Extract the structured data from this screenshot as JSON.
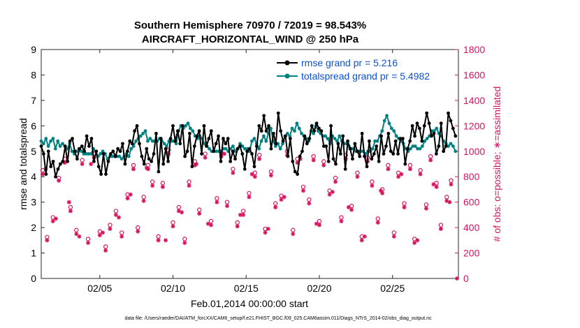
{
  "chart_data": {
    "type": "line",
    "title": "Southern Hemisphere 70970 / 72019 = 98.543%",
    "subtitle": "AIRCRAFT_HORIZONTAL_WIND @ 250 hPa",
    "xlabel": "Feb.01,2014 00:00:00 start",
    "ylabel_left": "rmse and totalspread",
    "ylabel_right": "# of obs: o=possible; ∗=assimilated",
    "footer": "data file: /Users/raeder/DAI/ATM_forcXX/CAM6_setup/f.e21.FHIST_BGC.f09_025.CAM6assim.011/Diags_NTrS_2014-02/obs_diag_output.nc",
    "xlim": [
      1,
      29.5
    ],
    "ylim_left": [
      0,
      9
    ],
    "ylim_right": [
      0,
      1800
    ],
    "x_ticks": [
      5,
      10,
      15,
      20,
      25
    ],
    "x_tick_labels": [
      "02/05",
      "02/10",
      "02/15",
      "02/20",
      "02/25"
    ],
    "y_left_ticks": [
      0,
      1,
      2,
      3,
      4,
      5,
      6,
      7,
      8,
      9
    ],
    "y_right_ticks": [
      0,
      200,
      400,
      600,
      800,
      1000,
      1200,
      1400,
      1600,
      1800
    ],
    "colors": {
      "rmse": "#000000",
      "spread": "#008080",
      "obs": "#d6135e",
      "legend_text": "#0a4fd6"
    },
    "legend": [
      "rmse grand pr = 5.216",
      "totalspread grand pr = 5.4982"
    ],
    "series": [
      {
        "name": "rmse",
        "values": [
          5.2,
          4.9,
          4.1,
          5.0,
          4.4,
          4.6,
          4.0,
          4.3,
          4.5,
          4.6,
          5.2,
          4.6,
          5.4,
          5.5,
          5.0,
          4.7,
          5.1,
          5.2,
          5.0,
          5.6,
          5.2,
          5.5,
          4.6,
          5.0,
          4.4,
          4.1,
          4.9,
          4.1,
          4.6,
          4.9,
          5.0,
          4.8,
          5.1,
          5.0,
          5.3,
          4.5,
          5.0,
          5.4,
          5.3,
          5.8,
          6.0,
          5.3,
          4.8,
          4.5,
          5.1,
          4.7,
          4.6,
          4.9,
          5.7,
          4.2,
          5.5,
          4.5,
          5.1,
          4.6,
          5.5,
          6.0,
          5.4,
          5.8,
          5.3,
          6.0,
          4.8,
          5.0,
          5.7,
          4.4,
          5.2,
          5.6,
          5.8,
          4.9,
          6.0,
          5.2,
          5.5,
          5.8,
          5.0,
          5.3,
          5.6,
          4.6,
          5.5,
          5.3,
          5.5,
          4.6,
          5.0,
          4.7,
          5.1,
          5.2,
          4.9,
          4.3,
          5.0,
          5.1,
          4.9,
          4.4,
          5.2,
          6.0,
          5.8,
          6.4,
          5.8,
          6.0,
          5.1,
          5.7,
          5.3,
          6.5,
          5.8,
          5.4,
          5.6,
          4.8,
          5.5,
          4.6,
          4.2,
          4.1,
          4.8,
          5.0,
          5.6,
          5.3,
          5.5,
          6.0,
          5.8,
          6.1,
          5.9,
          5.8,
          5.2,
          5.2,
          4.6,
          6.0,
          4.7,
          4.5,
          5.3,
          4.9,
          5.6,
          4.3,
          5.4,
          5.1,
          4.7,
          5.3,
          5.0,
          4.8,
          5.7,
          4.8,
          4.4,
          5.4,
          4.7,
          4.9,
          5.2,
          4.6,
          5.6,
          4.9,
          5.2,
          5.7,
          5.0,
          4.9,
          5.4,
          4.9,
          5.5,
          5.5,
          4.5,
          5.1,
          5.4,
          6.0,
          5.6,
          6.1,
          5.9,
          5.4,
          6.0,
          6.5,
          6.1,
          5.6,
          5.7,
          4.9,
          5.2,
          6.1,
          5.0,
          5.2,
          6.5,
          6.2,
          5.9,
          5.6
        ]
      },
      {
        "name": "totalspread",
        "values": [
          5.4,
          5.3,
          5.5,
          5.2,
          5.4,
          5.5,
          5.1,
          5.4,
          5.2,
          5.3,
          5.2,
          5.1,
          5.3,
          5.0,
          4.9,
          5.0,
          5.1,
          5.0,
          4.9,
          4.9,
          4.9,
          4.9,
          5.1,
          5.0,
          4.8,
          4.9,
          5.0,
          4.9,
          4.7,
          4.8,
          4.8,
          4.8,
          4.8,
          4.8,
          4.7,
          4.8,
          4.9,
          4.8,
          5.1,
          5.2,
          5.4,
          5.5,
          5.6,
          5.7,
          5.8,
          5.4,
          5.5,
          5.4,
          5.4,
          5.4,
          5.5,
          5.4,
          5.3,
          5.2,
          5.4,
          5.4,
          5.4,
          5.3,
          5.8,
          6.0,
          5.9,
          6.0,
          6.1,
          5.9,
          5.8,
          5.6,
          5.5,
          5.6,
          5.5,
          5.3,
          5.2,
          5.1,
          5.0,
          5.0,
          5.0,
          5.0,
          5.0,
          5.1,
          5.1,
          5.0,
          5.1,
          5.2,
          5.0,
          5.1,
          5.3,
          5.2,
          5.1,
          5.1,
          5.0,
          5.4,
          5.5,
          5.3,
          5.1,
          5.4,
          5.6,
          5.4,
          5.7,
          5.9,
          5.4,
          5.2,
          5.3,
          5.1,
          5.3,
          5.6,
          5.7,
          5.6,
          5.9,
          5.8,
          6.1,
          5.9,
          5.7,
          5.6,
          5.5,
          5.4,
          5.8,
          5.7,
          6.0,
          5.8,
          5.7,
          5.6,
          5.6,
          5.5,
          5.3,
          5.6,
          5.5,
          5.4,
          5.6,
          5.4,
          5.3,
          5.3,
          5.2,
          5.1,
          5.1,
          5.0,
          5.0,
          5.0,
          5.0,
          4.9,
          5.0,
          5.0,
          5.1,
          5.4,
          5.4,
          5.6,
          5.8,
          6.2,
          6.4,
          6.1,
          5.9,
          5.8,
          5.6,
          5.5,
          5.4,
          5.3,
          5.1,
          5.0,
          5.1,
          5.2,
          5.2,
          5.1,
          5.1,
          5.2,
          5.4,
          5.5,
          5.6,
          5.8,
          5.8,
          5.9,
          5.7,
          5.6,
          5.4,
          5.3,
          5.2,
          5.3,
          5.2,
          5.0
        ]
      }
    ],
    "obs_possible": [
      [
        1.1,
        850
      ],
      [
        1.4,
        325
      ],
      [
        1.8,
        480
      ],
      [
        2.2,
        790
      ],
      [
        2.6,
        940
      ],
      [
        3.0,
        560
      ],
      [
        3.4,
        380
      ],
      [
        3.8,
        930
      ],
      [
        4.2,
        310
      ],
      [
        4.6,
        980
      ],
      [
        5.0,
        370
      ],
      [
        5.4,
        250
      ],
      [
        5.7,
        420
      ],
      [
        6.1,
        530
      ],
      [
        6.5,
        360
      ],
      [
        6.9,
        660
      ],
      [
        7.3,
        890
      ],
      [
        7.6,
        400
      ],
      [
        8.0,
        640
      ],
      [
        8.3,
        890
      ],
      [
        8.6,
        760
      ],
      [
        9.0,
        330
      ],
      [
        9.3,
        750
      ],
      [
        9.7,
        1010
      ],
      [
        10.0,
        440
      ],
      [
        10.4,
        560
      ],
      [
        10.8,
        310
      ],
      [
        11.1,
        760
      ],
      [
        11.5,
        920
      ],
      [
        11.8,
        540
      ],
      [
        12.2,
        980
      ],
      [
        12.6,
        450
      ],
      [
        13.0,
        630
      ],
      [
        13.3,
        990
      ],
      [
        13.7,
        600
      ],
      [
        14.1,
        860
      ],
      [
        14.4,
        440
      ],
      [
        14.8,
        530
      ],
      [
        15.2,
        670
      ],
      [
        15.6,
        830
      ],
      [
        15.9,
        970
      ],
      [
        16.3,
        390
      ],
      [
        16.7,
        840
      ],
      [
        17.0,
        590
      ],
      [
        17.4,
        650
      ],
      [
        17.8,
        1000
      ],
      [
        18.2,
        380
      ],
      [
        18.5,
        940
      ],
      [
        18.9,
        720
      ],
      [
        19.3,
        620
      ],
      [
        19.6,
        960
      ],
      [
        20.0,
        450
      ],
      [
        20.3,
        920
      ],
      [
        20.7,
        690
      ],
      [
        21.1,
        790
      ],
      [
        21.5,
        480
      ],
      [
        21.8,
        970
      ],
      [
        22.2,
        570
      ],
      [
        22.6,
        830
      ],
      [
        22.9,
        330
      ],
      [
        23.3,
        950
      ],
      [
        23.6,
        760
      ],
      [
        24.0,
        470
      ],
      [
        24.3,
        700
      ],
      [
        24.7,
        890
      ],
      [
        25.1,
        360
      ],
      [
        25.4,
        830
      ],
      [
        25.8,
        590
      ],
      [
        26.2,
        890
      ],
      [
        26.5,
        310
      ],
      [
        26.9,
        850
      ],
      [
        27.3,
        580
      ],
      [
        27.6,
        960
      ],
      [
        28.0,
        750
      ],
      [
        28.3,
        420
      ],
      [
        28.7,
        640
      ],
      [
        29.0,
        770
      ]
    ],
    "obs_assimilated": [
      [
        1.1,
        820
      ],
      [
        1.4,
        300
      ],
      [
        1.8,
        450
      ],
      [
        2.2,
        770
      ],
      [
        2.6,
        910
      ],
      [
        3.0,
        530
      ],
      [
        3.4,
        350
      ],
      [
        3.8,
        900
      ],
      [
        4.2,
        280
      ],
      [
        4.6,
        950
      ],
      [
        5.0,
        340
      ],
      [
        5.4,
        220
      ],
      [
        5.7,
        390
      ],
      [
        6.1,
        500
      ],
      [
        6.5,
        330
      ],
      [
        6.9,
        630
      ],
      [
        7.3,
        860
      ],
      [
        7.6,
        370
      ],
      [
        8.0,
        610
      ],
      [
        8.3,
        860
      ],
      [
        8.6,
        730
      ],
      [
        9.0,
        300
      ],
      [
        9.3,
        720
      ],
      [
        9.7,
        980
      ],
      [
        10.0,
        410
      ],
      [
        10.4,
        530
      ],
      [
        10.8,
        280
      ],
      [
        11.1,
        730
      ],
      [
        11.5,
        890
      ],
      [
        11.8,
        510
      ],
      [
        12.2,
        950
      ],
      [
        12.6,
        420
      ],
      [
        13.0,
        600
      ],
      [
        13.3,
        960
      ],
      [
        13.7,
        570
      ],
      [
        14.1,
        830
      ],
      [
        14.4,
        410
      ],
      [
        14.8,
        500
      ],
      [
        15.2,
        640
      ],
      [
        15.6,
        800
      ],
      [
        15.9,
        940
      ],
      [
        16.3,
        360
      ],
      [
        16.7,
        810
      ],
      [
        17.0,
        560
      ],
      [
        17.4,
        620
      ],
      [
        17.8,
        970
      ],
      [
        18.2,
        350
      ],
      [
        18.5,
        910
      ],
      [
        18.9,
        690
      ],
      [
        19.3,
        590
      ],
      [
        19.6,
        930
      ],
      [
        20.0,
        420
      ],
      [
        20.3,
        890
      ],
      [
        20.7,
        660
      ],
      [
        21.1,
        760
      ],
      [
        21.5,
        450
      ],
      [
        21.8,
        940
      ],
      [
        22.2,
        540
      ],
      [
        22.6,
        800
      ],
      [
        22.9,
        300
      ],
      [
        23.3,
        920
      ],
      [
        23.6,
        730
      ],
      [
        24.0,
        440
      ],
      [
        24.3,
        670
      ],
      [
        24.7,
        860
      ],
      [
        25.1,
        330
      ],
      [
        25.4,
        800
      ],
      [
        25.8,
        560
      ],
      [
        26.2,
        860
      ],
      [
        26.5,
        280
      ],
      [
        26.9,
        820
      ],
      [
        27.3,
        550
      ],
      [
        27.6,
        930
      ],
      [
        28.0,
        720
      ],
      [
        28.3,
        390
      ],
      [
        28.7,
        610
      ],
      [
        29.0,
        740
      ],
      [
        1.3,
        860
      ],
      [
        2.0,
        470
      ],
      [
        2.9,
        600
      ],
      [
        3.6,
        330
      ],
      [
        4.4,
        900
      ],
      [
        5.2,
        360
      ],
      [
        6.3,
        480
      ],
      [
        7.1,
        660
      ],
      [
        8.2,
        870
      ],
      [
        9.5,
        300
      ],
      [
        10.6,
        520
      ],
      [
        11.6,
        900
      ],
      [
        12.4,
        430
      ],
      [
        13.5,
        980
      ],
      [
        14.6,
        500
      ],
      [
        15.4,
        820
      ],
      [
        16.5,
        390
      ],
      [
        17.6,
        640
      ],
      [
        18.7,
        940
      ],
      [
        19.8,
        430
      ],
      [
        20.9,
        680
      ],
      [
        22.0,
        560
      ],
      [
        23.1,
        330
      ],
      [
        24.2,
        690
      ],
      [
        25.6,
        820
      ],
      [
        26.7,
        300
      ],
      [
        27.8,
        740
      ],
      [
        28.9,
        600
      ],
      [
        29.4,
        0
      ]
    ]
  }
}
